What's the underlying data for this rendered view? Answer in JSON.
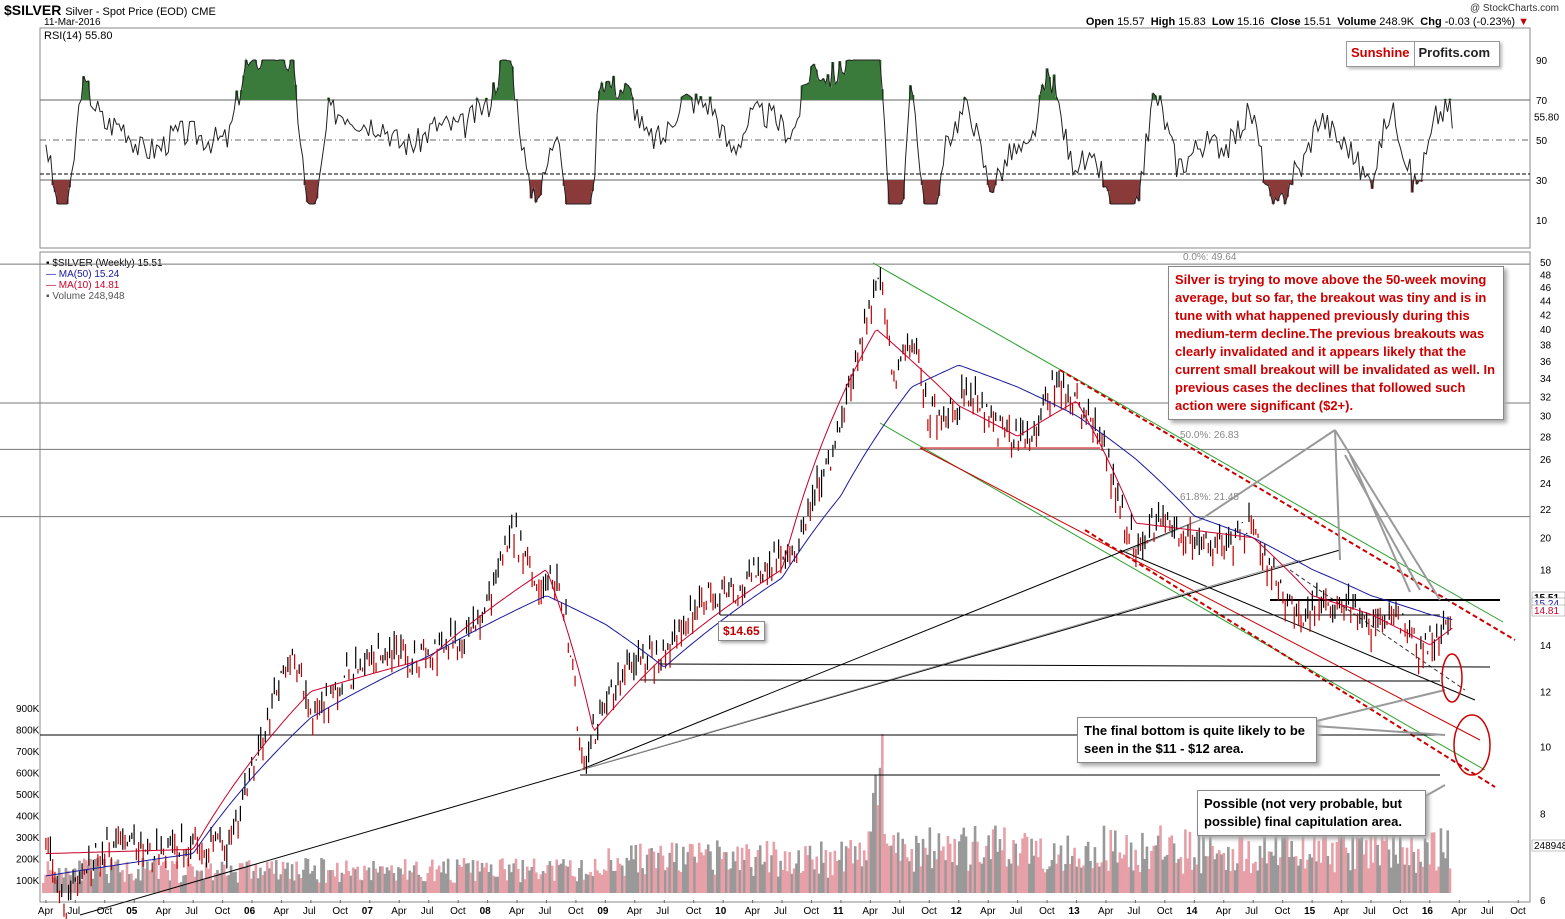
{
  "header": {
    "symbol": "$SILVER",
    "description": "Silver - Spot Price (EOD)",
    "exchange": "CME",
    "date": "11-Mar-2016",
    "copyright": "@ StockCharts.com",
    "open_label": "Open",
    "open": "15.57",
    "high_label": "High",
    "high": "15.83",
    "low_label": "Low",
    "low": "15.16",
    "close_label": "Close",
    "close": "15.51",
    "volume_label": "Volume",
    "volume": "248.9K",
    "chg_label": "Chg",
    "chg": "-0.03 (-0.23%)",
    "chg_arrow": "▼"
  },
  "logo": {
    "part1": "Sunshine",
    "part2": "Profits.com"
  },
  "rsi": {
    "label": "RSI(14) 55.80",
    "value_badge": "55.80",
    "levels": [
      "90",
      "70",
      "50",
      "30",
      "10"
    ]
  },
  "legend": {
    "price": "$SILVER (Weekly) 15.51",
    "ma50": "MA(50) 15.24",
    "ma10": "MA(10) 14.81",
    "volume": "Volume 248,948"
  },
  "colors": {
    "price_up": "#000000",
    "price_down": "#c00000",
    "ma50": "#1a1a9e",
    "ma10": "#c8002a",
    "rsi_high_fill": "#3a7a3a",
    "rsi_low_fill": "#8b3a3a",
    "channel_green": "#2aa02a",
    "channel_red": "#cc0000"
  },
  "fib_labels": {
    "f0": "0.0%: 49.64",
    "f50": "50.0%: 26.83",
    "f618": "61.8%: 21.45"
  },
  "annotations": {
    "main_note": "Silver is trying to move above the 50-week moving average, but so far, the breakout was tiny and is in tune with what happened previously during this medium-term decline.The previous breakouts was clearly invalidated and it appears likely that the current small breakout will be invalidated as well. In previous cases the declines that followed such action were significant ($2+).",
    "bottom_note": "The final bottom is quite likely to be seen in the $11 - $12 area.",
    "capitulation_note": "Possible (not very probable, but possible) final capitulation area.",
    "price_tag": "$14.65"
  },
  "right_axis": {
    "price_ticks": [
      "50",
      "48",
      "46",
      "44",
      "42",
      "40",
      "38",
      "36",
      "34",
      "32",
      "30",
      "28",
      "26",
      "24",
      "22",
      "20",
      "18",
      "16",
      "14",
      "12",
      "10",
      "8",
      "6"
    ],
    "badge_close": "15.51",
    "badge_ma50": "15.24",
    "badge_ma10": "14.81",
    "badge_volume": "248948"
  },
  "left_axis": {
    "volume_ticks": [
      "900K",
      "800K",
      "700K",
      "600K",
      "500K",
      "400K",
      "300K",
      "200K",
      "100K"
    ]
  },
  "x_axis": {
    "labels": [
      "Apr",
      "Jul",
      "Oct",
      "05",
      "Apr",
      "Jul",
      "Oct",
      "06",
      "Apr",
      "Jul",
      "Oct",
      "07",
      "Apr",
      "Jul",
      "Oct",
      "08",
      "Apr",
      "Jul",
      "Oct",
      "09",
      "Apr",
      "Jul",
      "Oct",
      "10",
      "Apr",
      "Jul",
      "Oct",
      "11",
      "Apr",
      "Jul",
      "Oct",
      "12",
      "Apr",
      "Jul",
      "Oct",
      "13",
      "Apr",
      "Jul",
      "Oct",
      "14",
      "Apr",
      "Jul",
      "Oct",
      "15",
      "Apr",
      "Jul",
      "Oct",
      "16",
      "Apr",
      "Jul",
      "Oct"
    ]
  },
  "chart_data": {
    "type": "line",
    "title": "$SILVER Silver - Spot Price (EOD) CME",
    "frequency": "weekly",
    "x_range": [
      "2004-03",
      "2016-10"
    ],
    "ylim": [
      6,
      50
    ],
    "y_scale": "log",
    "series": [
      {
        "name": "$SILVER (Weekly)",
        "t": [
          2004.25,
          2004.4,
          2004.6,
          2004.9,
          2005.2,
          2005.5,
          2005.8,
          2006.0,
          2006.35,
          2006.5,
          2006.8,
          2007.1,
          2007.4,
          2007.8,
          2008.0,
          2008.2,
          2008.45,
          2008.6,
          2008.8,
          2008.9,
          2009.2,
          2009.5,
          2009.9,
          2010.1,
          2010.4,
          2010.6,
          2010.9,
          2011.0,
          2011.15,
          2011.32,
          2011.45,
          2011.6,
          2011.75,
          2011.9,
          2012.1,
          2012.3,
          2012.6,
          2012.8,
          2013.0,
          2013.2,
          2013.35,
          2013.5,
          2013.7,
          2013.9,
          2014.1,
          2014.3,
          2014.5,
          2014.7,
          2014.9,
          2015.1,
          2015.3,
          2015.5,
          2015.7,
          2015.9,
          2016.0,
          2016.19
        ],
        "values": [
          7.5,
          5.8,
          6.8,
          7.3,
          7.0,
          7.2,
          7.2,
          9.0,
          14.0,
          11.0,
          12.5,
          13.5,
          13.3,
          14.5,
          16.0,
          20.5,
          17.0,
          17.8,
          9.5,
          10.5,
          13.3,
          13.4,
          16.9,
          16.5,
          18.5,
          19.0,
          26.0,
          29.0,
          36.0,
          48.5,
          34.0,
          39.0,
          30.0,
          30.0,
          33.0,
          29.0,
          27.5,
          33.0,
          31.0,
          28.5,
          22.5,
          19.0,
          21.5,
          20.0,
          19.8,
          19.5,
          21.0,
          17.0,
          15.5,
          16.5,
          16.3,
          14.5,
          15.7,
          13.8,
          14.2,
          15.51
        ]
      },
      {
        "name": "MA(50)",
        "t": [
          2004.25,
          2005.5,
          2006.5,
          2007.5,
          2008.5,
          2009.0,
          2009.5,
          2010.5,
          2011.0,
          2011.6,
          2012.0,
          2012.5,
          2013.0,
          2013.5,
          2014.0,
          2014.5,
          2015.0,
          2015.5,
          2016.0,
          2016.19
        ],
        "values": [
          6.5,
          7.0,
          11.0,
          13.5,
          16.5,
          15.0,
          13.0,
          17.5,
          23.0,
          33.0,
          35.5,
          33.0,
          30.0,
          26.0,
          21.5,
          20.0,
          18.0,
          16.5,
          15.5,
          15.24
        ]
      },
      {
        "name": "MA(10)",
        "t": [
          2004.25,
          2005.5,
          2006.5,
          2007.5,
          2008.5,
          2008.9,
          2009.5,
          2010.5,
          2011.3,
          2011.6,
          2012.0,
          2012.5,
          2013.0,
          2013.5,
          2014.0,
          2014.5,
          2015.0,
          2015.5,
          2016.0,
          2016.19
        ],
        "values": [
          7.0,
          7.1,
          12.0,
          13.4,
          18.0,
          10.5,
          13.5,
          18.0,
          40.0,
          36.0,
          31.0,
          28.0,
          31.5,
          21.0,
          20.5,
          20.0,
          16.5,
          15.5,
          14.0,
          14.81
        ]
      }
    ],
    "rsi14_last": 55.8,
    "volume_last": 248948,
    "fibonacci": [
      {
        "level": "0.0%",
        "value": 49.64
      },
      {
        "level": "50.0%",
        "value": 26.83
      },
      {
        "level": "61.8%",
        "value": 21.45
      }
    ],
    "marked_levels": [
      14.65
    ]
  }
}
